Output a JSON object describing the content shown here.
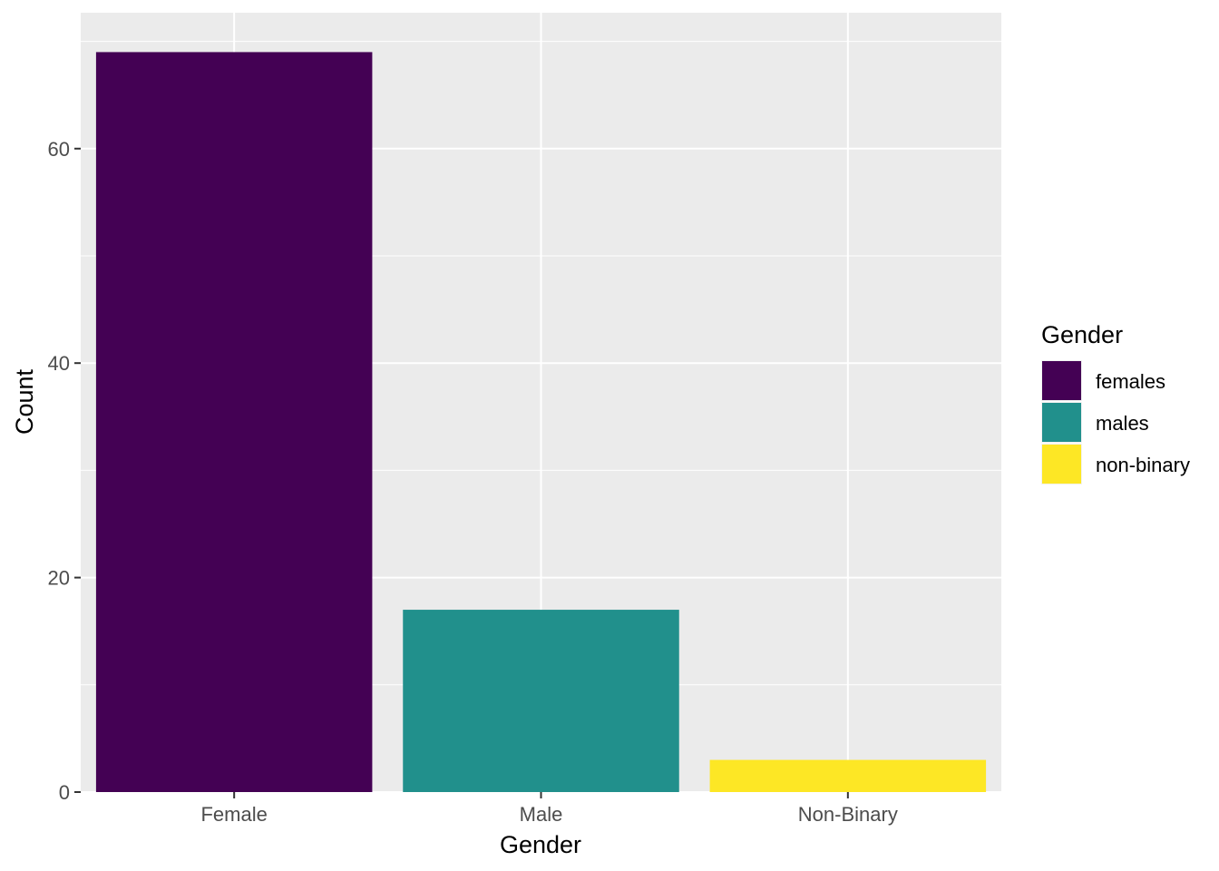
{
  "chart_data": {
    "type": "bar",
    "categories": [
      "Female",
      "Male",
      "Non-Binary"
    ],
    "values": [
      69,
      17,
      3
    ],
    "xlabel": "Gender",
    "ylabel": "Count",
    "ylim": [
      0,
      69
    ],
    "yticks": [
      0,
      20,
      40,
      60
    ],
    "grid": true,
    "colors": [
      "#440154",
      "#21908C",
      "#FDE725"
    ],
    "panel_background": "#EBEBEB",
    "legend": {
      "title": "Gender",
      "placement": "right",
      "entries": [
        {
          "label": "females",
          "color": "#440154"
        },
        {
          "label": "males",
          "color": "#21908C"
        },
        {
          "label": "non-binary",
          "color": "#FDE725"
        }
      ]
    }
  }
}
